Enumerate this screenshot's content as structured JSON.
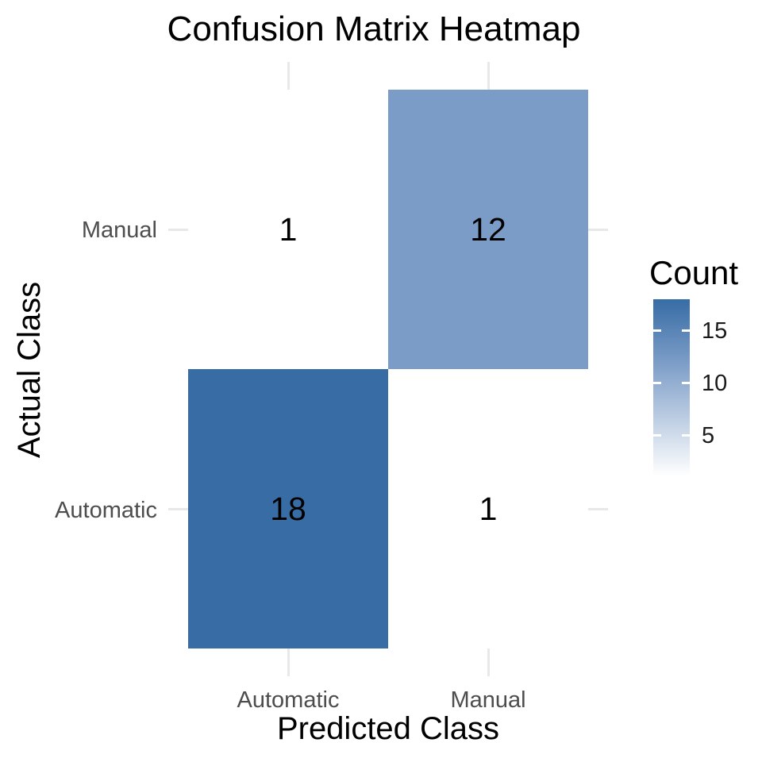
{
  "chart_data": {
    "type": "heatmap",
    "title": "Confusion Matrix Heatmap",
    "xlabel": "Predicted Class",
    "ylabel": "Actual Class",
    "x_categories": [
      "Automatic",
      "Manual"
    ],
    "y_categories": [
      "Automatic",
      "Manual"
    ],
    "matrix_rows_top_to_bottom": [
      {
        "actual": "Manual",
        "counts_by_predicted": [
          1,
          12
        ]
      },
      {
        "actual": "Automatic",
        "counts_by_predicted": [
          18,
          1
        ]
      }
    ],
    "cells": [
      {
        "actual": "Manual",
        "predicted": "Automatic",
        "count": 1,
        "fill": "#FFFFFF"
      },
      {
        "actual": "Manual",
        "predicted": "Manual",
        "count": 12,
        "fill": "#7B9CC7"
      },
      {
        "actual": "Automatic",
        "predicted": "Automatic",
        "count": 18,
        "fill": "#376CA5"
      },
      {
        "actual": "Automatic",
        "predicted": "Manual",
        "count": 1,
        "fill": "#FFFFFF"
      }
    ],
    "colorbar": {
      "title": "Count",
      "position": "right",
      "min": 1,
      "max": 18,
      "tick_values": [
        15,
        10,
        5
      ],
      "tick_labels": [
        "15",
        "10",
        "5"
      ],
      "low_color": "#FFFFFF",
      "mid_color": "#7B9CC7",
      "mid_stop_pct": 64.7,
      "high_color": "#376CA5"
    },
    "grid": true,
    "grid_color": "#E8E8E8",
    "axis_text_color": "#4D4D4D",
    "background": "#FFFFFF"
  },
  "axes": {
    "x_title": "Predicted Class",
    "y_title": "Actual Class",
    "x_tick_labels": [
      "Automatic",
      "Manual"
    ],
    "y_tick_labels_top_to_bottom": [
      "Manual",
      "Automatic"
    ]
  }
}
